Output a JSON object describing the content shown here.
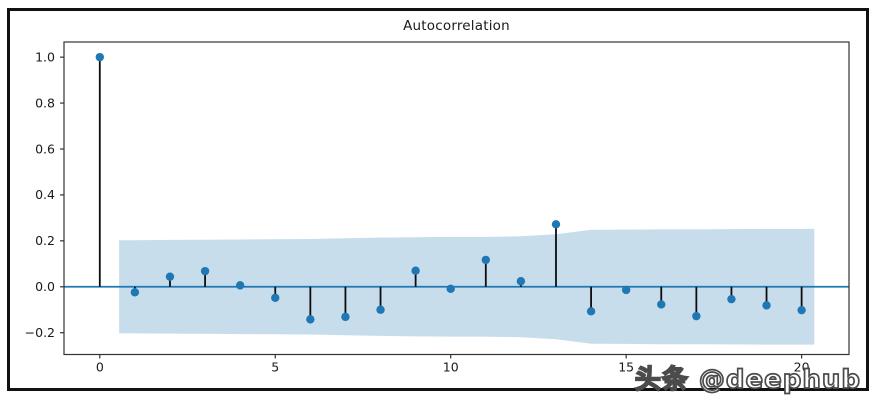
{
  "figure": {
    "watermark": "头条 @deephub"
  },
  "chart_data": {
    "type": "stem",
    "title": "Autocorrelation",
    "xlabel": "",
    "ylabel": "",
    "x": [
      0,
      1,
      2,
      3,
      4,
      5,
      6,
      7,
      8,
      9,
      10,
      11,
      12,
      13,
      14,
      15,
      16,
      17,
      18,
      19,
      20
    ],
    "values": [
      1.0,
      -0.024,
      0.044,
      0.068,
      0.006,
      -0.048,
      -0.142,
      -0.131,
      -0.1,
      0.07,
      -0.009,
      0.117,
      0.024,
      0.272,
      -0.107,
      -0.014,
      -0.077,
      -0.128,
      -0.054,
      -0.081,
      -0.102
    ],
    "confidence_band": {
      "description": "shaded symmetric confidence interval around zero",
      "lags": [
        0.55,
        1,
        2,
        3,
        4,
        5,
        6,
        7,
        8,
        9,
        10,
        11,
        12,
        13,
        14,
        15,
        16,
        17,
        18,
        19,
        20,
        20.36
      ],
      "half_widths": [
        0.203,
        0.203,
        0.204,
        0.205,
        0.206,
        0.207,
        0.208,
        0.211,
        0.214,
        0.216,
        0.217,
        0.217,
        0.22,
        0.229,
        0.248,
        0.249,
        0.25,
        0.25,
        0.251,
        0.252,
        0.252,
        0.252
      ]
    },
    "xticks": [
      {
        "v": 0,
        "label": "0"
      },
      {
        "v": 5,
        "label": "5"
      },
      {
        "v": 10,
        "label": "10"
      },
      {
        "v": 15,
        "label": "15"
      },
      {
        "v": 20,
        "label": "20"
      }
    ],
    "yticks": [
      {
        "v": 1.0,
        "label": "1.0"
      },
      {
        "v": 0.8,
        "label": "0.8"
      },
      {
        "v": 0.6,
        "label": "0.6"
      },
      {
        "v": 0.4,
        "label": "0.4"
      },
      {
        "v": 0.2,
        "label": "0.2"
      },
      {
        "v": 0.0,
        "label": "0.0"
      },
      {
        "v": -0.2,
        "label": "−0.2"
      }
    ],
    "xlim": [
      -1.02,
      21.35
    ],
    "ylim": [
      -0.295,
      1.066
    ],
    "grid": false,
    "legend": "none",
    "colors": {
      "marker": "#1f77b4",
      "zero_line": "#1f77b4",
      "stem": "#0d0d0d",
      "band": "#c7ddec",
      "frame": "#333333",
      "text": "#1a1a1a",
      "outer_border": "#111111"
    }
  }
}
